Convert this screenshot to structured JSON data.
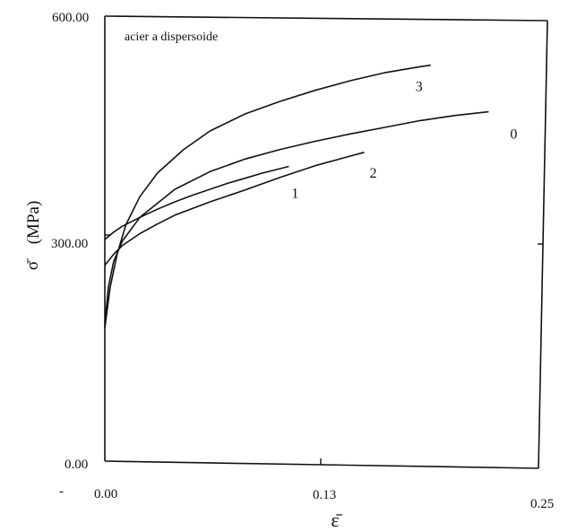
{
  "chart_data": {
    "type": "line",
    "title": "",
    "annotation": "acier a dispersoide",
    "xlabel": "ε̄",
    "ylabel_symbol": "σ̄",
    "ylabel_unit": "(MPa)",
    "xlim": [
      0,
      0.25
    ],
    "ylim": [
      0,
      600
    ],
    "x_tick_labels": [
      "0.00",
      "0.13",
      "0.25"
    ],
    "y_tick_labels": [
      "0.00",
      "300.00",
      "600.00"
    ],
    "stray_mark": "-",
    "series": [
      {
        "name": "0",
        "points": [
          [
            0,
            185
          ],
          [
            0.002,
            235
          ],
          [
            0.005,
            270
          ],
          [
            0.01,
            298
          ],
          [
            0.02,
            330
          ],
          [
            0.04,
            368
          ],
          [
            0.06,
            392
          ],
          [
            0.08,
            409
          ],
          [
            0.1,
            422
          ],
          [
            0.12,
            433
          ],
          [
            0.14,
            443
          ],
          [
            0.16,
            452
          ],
          [
            0.18,
            461
          ],
          [
            0.2,
            468
          ],
          [
            0.219,
            473
          ]
        ]
      },
      {
        "name": "1",
        "points": [
          [
            0,
            300
          ],
          [
            0.005,
            310
          ],
          [
            0.01,
            318
          ],
          [
            0.02,
            330
          ],
          [
            0.03,
            341
          ],
          [
            0.04,
            351
          ],
          [
            0.05,
            360
          ],
          [
            0.06,
            368
          ],
          [
            0.07,
            376
          ],
          [
            0.08,
            383
          ],
          [
            0.09,
            390
          ],
          [
            0.1,
            396
          ],
          [
            0.105,
            399
          ]
        ]
      },
      {
        "name": "2",
        "points": [
          [
            0,
            265
          ],
          [
            0.005,
            280
          ],
          [
            0.01,
            292
          ],
          [
            0.02,
            308
          ],
          [
            0.03,
            321
          ],
          [
            0.04,
            333
          ],
          [
            0.06,
            351
          ],
          [
            0.08,
            367
          ],
          [
            0.1,
            384
          ],
          [
            0.12,
            400
          ],
          [
            0.14,
            413
          ],
          [
            0.148,
            418
          ]
        ]
      },
      {
        "name": "3",
        "points": [
          [
            0,
            180
          ],
          [
            0.003,
            235
          ],
          [
            0.007,
            280
          ],
          [
            0.012,
            320
          ],
          [
            0.02,
            358
          ],
          [
            0.03,
            390
          ],
          [
            0.045,
            422
          ],
          [
            0.06,
            447
          ],
          [
            0.08,
            470
          ],
          [
            0.1,
            487
          ],
          [
            0.12,
            502
          ],
          [
            0.14,
            515
          ],
          [
            0.16,
            526
          ],
          [
            0.18,
            534
          ],
          [
            0.186,
            536
          ]
        ]
      }
    ]
  }
}
